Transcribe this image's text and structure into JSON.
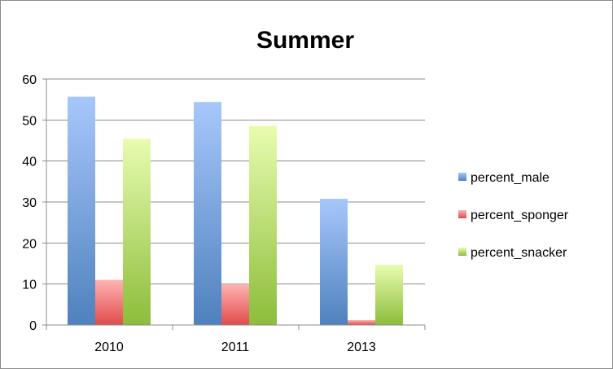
{
  "chart_data": {
    "type": "bar",
    "title": "Summer",
    "xlabel": "",
    "ylabel": "",
    "categories": [
      "2010",
      "2011",
      "2013"
    ],
    "ylim": [
      0,
      60
    ],
    "yticks": [
      0,
      10,
      20,
      30,
      40,
      50,
      60
    ],
    "grid": true,
    "legend_position": "right",
    "series": [
      {
        "name": "percent_male",
        "values": [
          55.7,
          54.4,
          30.8
        ],
        "color": "#4f81bd",
        "color_light": "#a7c7fb"
      },
      {
        "name": "percent_sponger",
        "values": [
          11.0,
          10.0,
          1.2
        ],
        "color": "#e04b4b",
        "color_light": "#ffb3b3"
      },
      {
        "name": "percent_snacker",
        "values": [
          45.4,
          48.6,
          14.7
        ],
        "color": "#8cbd3a",
        "color_light": "#e8fcb0"
      }
    ]
  }
}
